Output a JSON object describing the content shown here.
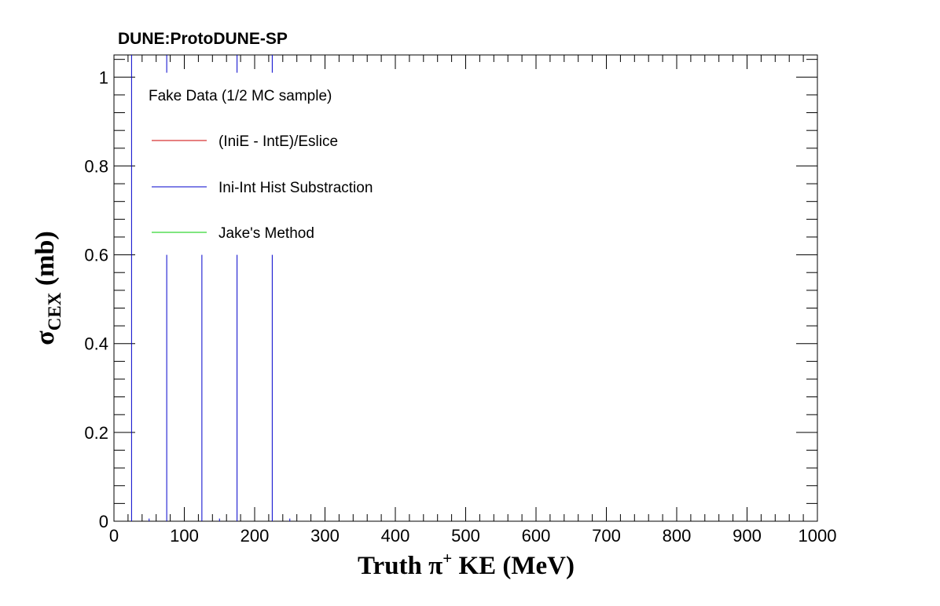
{
  "chart_data": {
    "type": "line",
    "title": "DUNE:ProtoDUNE-SP",
    "ylabel": {
      "symbol": "σ",
      "subscript": "CEX",
      "rest": " (mb)"
    },
    "xlabel": {
      "pre": "Truth  π",
      "sup": "+",
      "post": " KE (MeV)"
    },
    "xlim": [
      0,
      1000
    ],
    "ylim": [
      0,
      1.05
    ],
    "x_ticks": [
      0,
      100,
      200,
      300,
      400,
      500,
      600,
      700,
      800,
      900,
      1000
    ],
    "y_ticks": [
      0,
      0.2,
      0.4,
      0.6,
      0.8,
      1
    ],
    "y_tick_labels": [
      "0",
      "0.2",
      "0.4",
      "0.6",
      "0.8",
      "1"
    ],
    "grid": false,
    "legend": {
      "header": "Fake Data (1/2 MC sample)",
      "placement": "top-left",
      "entries": [
        {
          "label": "(IniE - IntE)/Eslice",
          "color": "#cc0000"
        },
        {
          "label": "Ini-Int Hist Substraction",
          "color": "#0000cc"
        },
        {
          "label": "Jake's Method",
          "color": "#00cc00"
        }
      ]
    },
    "series": [
      {
        "color": "#0000cc",
        "segments": [
          {
            "x": 25,
            "y0": 0,
            "y1": 1.05
          },
          {
            "x": 75,
            "y0": 0,
            "y1": 0.6
          },
          {
            "x": 125,
            "y0": 0,
            "y1": 0.6
          },
          {
            "x": 175,
            "y0": 0,
            "y1": 0.6
          },
          {
            "x": 225,
            "y0": 0,
            "y1": 0.6
          },
          {
            "x": 75,
            "y0": 1.01,
            "y1": 1.05
          },
          {
            "x": 175,
            "y0": 1.01,
            "y1": 1.05
          },
          {
            "x": 225,
            "y0": 1.01,
            "y1": 1.05
          },
          {
            "x": 50,
            "y0": 0,
            "y1": 0.006
          },
          {
            "x": 150,
            "y0": 0,
            "y1": 0.006
          },
          {
            "x": 250,
            "y0": 0,
            "y1": 0.006
          }
        ]
      }
    ]
  }
}
